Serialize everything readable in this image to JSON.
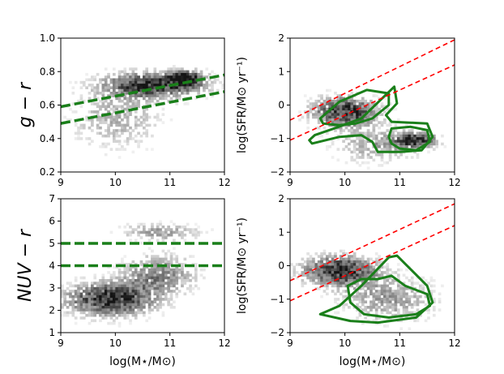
{
  "chart_data": [
    {
      "type": "scatter",
      "panel": "top-left",
      "xlabel": "",
      "ylabel": "g − r",
      "xlim": [
        9,
        12
      ],
      "ylim": [
        0.2,
        1.0
      ],
      "xticks": [
        "9",
        "10",
        "11",
        "12"
      ],
      "yticks": [
        "0.2",
        "0.4",
        "0.6",
        "0.8",
        "1.0"
      ],
      "density_clouds": [
        {
          "cx": 10.7,
          "cy": 0.72,
          "sx": 0.6,
          "sy": 0.05,
          "weight": 1.0
        },
        {
          "cx": 11.3,
          "cy": 0.76,
          "sx": 0.2,
          "sy": 0.03,
          "weight": 1.0
        },
        {
          "cx": 10.0,
          "cy": 0.52,
          "sx": 0.55,
          "sy": 0.12,
          "weight": 0.35
        }
      ],
      "lines": [
        {
          "name": "",
          "color": "#1a7f1a",
          "style": "dashed",
          "x": [
            9,
            12
          ],
          "y": [
            0.59,
            0.78
          ]
        },
        {
          "name": "",
          "color": "#1a7f1a",
          "style": "dashed",
          "x": [
            9,
            12
          ],
          "y": [
            0.49,
            0.68
          ]
        }
      ]
    },
    {
      "type": "scatter",
      "panel": "top-right",
      "xlabel": "",
      "ylabel": "log(SFR/M⊙ yr⁻¹)",
      "xlim": [
        9,
        12
      ],
      "ylim": [
        -2,
        2
      ],
      "xticks": [
        "9",
        "10",
        "11",
        "12"
      ],
      "yticks": [
        "−2",
        "−1",
        "0",
        "1",
        "2"
      ],
      "density_clouds": [
        {
          "cx": 10.0,
          "cy": -0.2,
          "sx": 0.4,
          "sy": 0.3,
          "weight": 1.0
        },
        {
          "cx": 11.3,
          "cy": -1.05,
          "sx": 0.25,
          "sy": 0.15,
          "weight": 1.0
        },
        {
          "cx": 10.6,
          "cy": -1.2,
          "sx": 0.5,
          "sy": 0.35,
          "weight": 0.4
        }
      ],
      "lines": [
        {
          "name": "",
          "color": "#ff0000",
          "style": "dashed",
          "x": [
            9,
            12
          ],
          "y": [
            -0.45,
            1.95
          ]
        },
        {
          "name": "",
          "color": "#ff0000",
          "style": "dashed",
          "x": [
            9,
            12
          ],
          "y": [
            -1.05,
            1.2
          ]
        }
      ],
      "contours": [
        {
          "color": "#1a7f1a",
          "x": [
            9.45,
            9.8,
            10.3,
            10.9,
            10.95,
            10.75,
            10.85,
            11.5,
            11.6,
            11.4,
            11.0,
            10.6,
            10.5,
            10.3,
            9.9,
            9.4,
            9.35,
            9.45
          ],
          "y": [
            -0.9,
            -0.7,
            -0.4,
            0.55,
            0.05,
            -0.3,
            -0.5,
            -0.55,
            -0.95,
            -1.35,
            -1.4,
            -1.4,
            -1.1,
            -0.9,
            -0.95,
            -1.15,
            -1.05,
            -0.9
          ]
        },
        {
          "color": "#1a7f1a",
          "x": [
            9.55,
            9.9,
            10.4,
            10.8,
            10.8,
            10.5,
            10.2,
            9.9,
            9.6,
            9.55
          ],
          "y": [
            -0.4,
            0.1,
            0.45,
            0.35,
            0.0,
            -0.4,
            -0.55,
            -0.6,
            -0.55,
            -0.4
          ]
        },
        {
          "color": "#1a7f1a",
          "x": [
            10.85,
            11.2,
            11.5,
            11.55,
            11.3,
            11.0,
            10.85,
            10.8,
            10.85
          ],
          "y": [
            -0.7,
            -0.65,
            -0.75,
            -1.1,
            -1.35,
            -1.3,
            -1.15,
            -0.95,
            -0.7
          ]
        }
      ]
    },
    {
      "type": "scatter",
      "panel": "bottom-left",
      "xlabel": "log(M⋆/M⊙)",
      "ylabel": "NUV − r",
      "xlim": [
        9,
        12
      ],
      "ylim": [
        1,
        7
      ],
      "xticks": [
        "9",
        "10",
        "11",
        "12"
      ],
      "yticks": [
        "1",
        "2",
        "3",
        "4",
        "5",
        "6",
        "7"
      ],
      "density_clouds": [
        {
          "cx": 9.9,
          "cy": 2.5,
          "sx": 0.55,
          "sy": 0.5,
          "weight": 1.0
        },
        {
          "cx": 10.8,
          "cy": 3.6,
          "sx": 0.45,
          "sy": 0.6,
          "weight": 0.55
        },
        {
          "cx": 10.8,
          "cy": 5.5,
          "sx": 0.5,
          "sy": 0.25,
          "weight": 0.45
        }
      ],
      "lines": [
        {
          "name": "",
          "color": "#1a7f1a",
          "style": "dashed",
          "x": [
            9,
            12
          ],
          "y": [
            5,
            5
          ]
        },
        {
          "name": "",
          "color": "#1a7f1a",
          "style": "dashed",
          "x": [
            9,
            12
          ],
          "y": [
            4,
            4
          ]
        }
      ]
    },
    {
      "type": "scatter",
      "panel": "bottom-right",
      "xlabel": "log(M⋆/M⊙)",
      "ylabel": "log(SFR/M⊙ yr⁻¹)",
      "xlim": [
        9,
        12
      ],
      "ylim": [
        -2,
        2
      ],
      "xticks": [
        "9",
        "10",
        "11",
        "12"
      ],
      "yticks": [
        "−2",
        "−1",
        "0",
        "1",
        "2"
      ],
      "density_clouds": [
        {
          "cx": 9.9,
          "cy": -0.15,
          "sx": 0.45,
          "sy": 0.3,
          "weight": 1.0
        },
        {
          "cx": 10.8,
          "cy": -1.0,
          "sx": 0.55,
          "sy": 0.45,
          "weight": 0.45
        }
      ],
      "lines": [
        {
          "name": "",
          "color": "#ff0000",
          "style": "dashed",
          "x": [
            9,
            12
          ],
          "y": [
            -0.45,
            1.85
          ]
        },
        {
          "name": "",
          "color": "#ff0000",
          "style": "dashed",
          "x": [
            9,
            12
          ],
          "y": [
            -1.05,
            1.2
          ]
        }
      ],
      "contours": [
        {
          "color": "#1a7f1a",
          "x": [
            9.55,
            9.9,
            10.3,
            10.8,
            10.95,
            11.5,
            11.6,
            11.3,
            10.6,
            10.1,
            9.55
          ],
          "y": [
            -1.45,
            -1.2,
            -0.6,
            0.25,
            0.3,
            -0.6,
            -1.1,
            -1.55,
            -1.7,
            -1.65,
            -1.45
          ]
        },
        {
          "color": "#1a7f1a",
          "x": [
            10.05,
            10.3,
            10.6,
            10.85,
            11.1,
            11.5,
            11.55,
            11.3,
            10.8,
            10.35,
            10.1,
            10.05
          ],
          "y": [
            -0.6,
            -0.4,
            -0.4,
            -0.3,
            -0.6,
            -0.85,
            -1.2,
            -1.45,
            -1.55,
            -1.45,
            -1.1,
            -0.6
          ]
        }
      ]
    }
  ]
}
